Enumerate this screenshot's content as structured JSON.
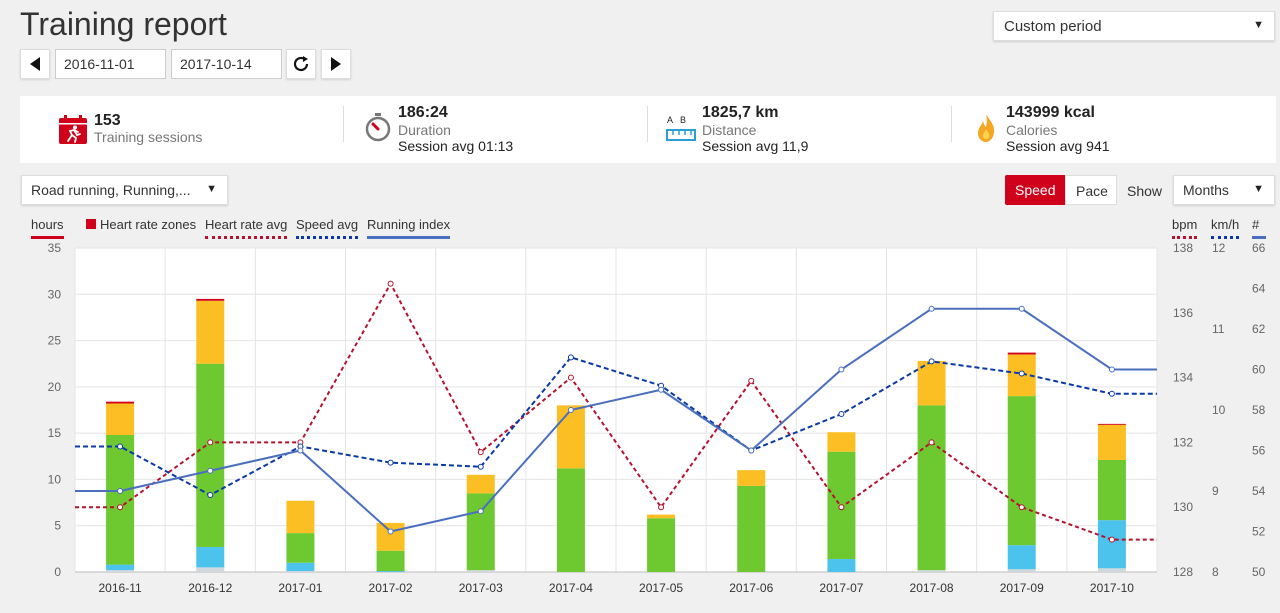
{
  "header": {
    "title": "Training report",
    "period": "Custom period"
  },
  "date_range": {
    "start": "2016-11-01",
    "end": "2017-10-14"
  },
  "summary": {
    "sessions": {
      "value": "153",
      "label": "Training sessions"
    },
    "duration": {
      "value": "186:24",
      "label": "Duration",
      "avg": "Session avg 01:13"
    },
    "distance": {
      "value": "1825,7 km",
      "label": "Distance",
      "avg": "Session avg 11,9",
      "ruler_letters": "A   B"
    },
    "calories": {
      "value": "143999 kcal",
      "label": "Calories",
      "avg": "Session avg 941"
    }
  },
  "filters": {
    "sport": "Road running, Running,...",
    "speed": "Speed",
    "pace": "Pace",
    "show": "Show",
    "interval": "Months"
  },
  "legend": {
    "hours": "hours",
    "hr_zones": "Heart rate zones",
    "hr_avg": "Heart rate avg",
    "speed_avg": "Speed avg",
    "running_index": "Running index",
    "bpm": "bpm",
    "kmh": "km/h",
    "count": "#"
  },
  "colors": {
    "accent": "#d0021b",
    "zone1": "#d0d8dd",
    "zone2": "#4cc3ec",
    "zone3": "#6dc92f",
    "zone4": "#fbbf24",
    "zone5": "#d0021b",
    "hr_line": "#b5122f",
    "speed_line": "#0b3aa8",
    "index_line": "#4a6fbf"
  },
  "chart_data": {
    "type": "bar",
    "categories": [
      "2016-11",
      "2016-12",
      "2017-01",
      "2017-02",
      "2017-03",
      "2017-04",
      "2017-05",
      "2017-06",
      "2017-07",
      "2017-08",
      "2017-09",
      "2017-10"
    ],
    "y_left": {
      "label": "hours",
      "range": [
        0,
        35
      ],
      "ticks": [
        0,
        5,
        10,
        15,
        20,
        25,
        30,
        35
      ]
    },
    "y_bpm": {
      "label": "bpm",
      "range": [
        128,
        138
      ],
      "ticks": [
        128,
        130,
        132,
        134,
        136,
        138
      ]
    },
    "y_speed": {
      "label": "km/h",
      "range": [
        8,
        12
      ],
      "ticks": [
        8,
        9,
        10,
        11,
        12
      ]
    },
    "y_index": {
      "label": "#",
      "range": [
        50,
        66
      ],
      "ticks": [
        50,
        52,
        54,
        56,
        58,
        60,
        62,
        64,
        66
      ]
    },
    "stacks": [
      [
        0.2,
        0.6,
        14.0,
        3.4,
        0.2
      ],
      [
        0.5,
        2.2,
        19.8,
        6.8,
        0.2
      ],
      [
        0.1,
        0.9,
        3.2,
        3.5,
        0
      ],
      [
        0,
        0.1,
        2.2,
        3.0,
        0
      ],
      [
        0.2,
        0,
        8.3,
        2.0,
        0
      ],
      [
        0,
        0,
        11.2,
        6.8,
        0
      ],
      [
        0,
        0,
        5.8,
        0.4,
        0
      ],
      [
        0,
        0,
        9.3,
        1.7,
        0
      ],
      [
        0,
        1.4,
        11.6,
        2.1,
        0
      ],
      [
        0.2,
        0,
        17.8,
        4.8,
        0
      ],
      [
        0.3,
        2.6,
        16.1,
        4.5,
        0.2
      ],
      [
        0.4,
        5.2,
        6.5,
        3.8,
        0.1
      ]
    ],
    "series": [
      {
        "name": "Heart rate avg",
        "axis": "bpm",
        "values": [
          130.0,
          132.0,
          132.0,
          136.9,
          131.7,
          134.0,
          130.0,
          133.9,
          130.0,
          132.0,
          130.0,
          129.0
        ]
      },
      {
        "name": "Speed avg",
        "axis": "kmh",
        "values": [
          9.55,
          8.95,
          9.55,
          9.35,
          9.3,
          10.65,
          10.3,
          9.5,
          9.95,
          10.6,
          10.45,
          10.2
        ]
      },
      {
        "name": "Running index",
        "axis": "index",
        "values": [
          54.0,
          55.0,
          56.0,
          52.0,
          53.0,
          58.0,
          59.0,
          56.0,
          60.0,
          63.0,
          63.0,
          60.0
        ]
      }
    ]
  }
}
